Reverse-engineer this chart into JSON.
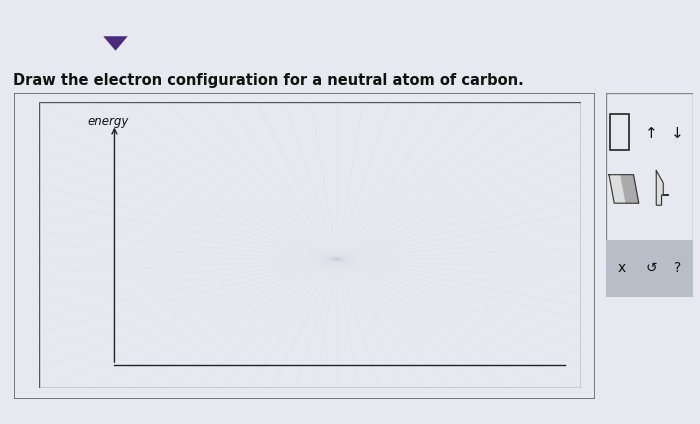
{
  "title": "Draw the electron configuration for a neutral atom of carbon.",
  "title_fontsize": 10.5,
  "bg_color_top": "#5a3a8a",
  "bg_color_main": "#e8e8f0",
  "tab_color": "#c8b040",
  "tab_arrow_color": "#4a2a7a",
  "drawing_box_bg": "#f5f5fc",
  "inner_box_bg": "#ffffff",
  "energy_label": "energy",
  "energy_label_fontsize": 8.5,
  "panel_bg": "#ccd4dc",
  "panel_border": "#aaaaaa",
  "panel_row3_bg": "#b8bec8"
}
